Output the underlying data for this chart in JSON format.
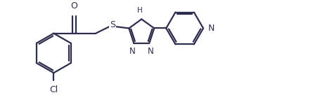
{
  "bg_color": "#ffffff",
  "line_color": "#2d2d4e",
  "line_width": 1.6,
  "font_size": 9.0,
  "figsize": [
    4.45,
    1.36
  ],
  "dpi": 100,
  "xlim": [
    -1.6,
    7.8
  ],
  "ylim": [
    -1.25,
    1.5
  ]
}
